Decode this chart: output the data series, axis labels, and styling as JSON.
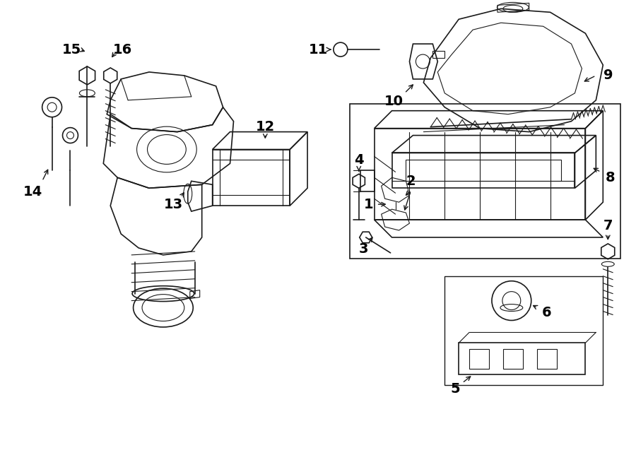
{
  "bg_color": "#ffffff",
  "line_color": "#1a1a1a",
  "label_color": "#000000",
  "fig_width": 9.0,
  "fig_height": 6.61,
  "dpi": 100,
  "font_size": 14
}
